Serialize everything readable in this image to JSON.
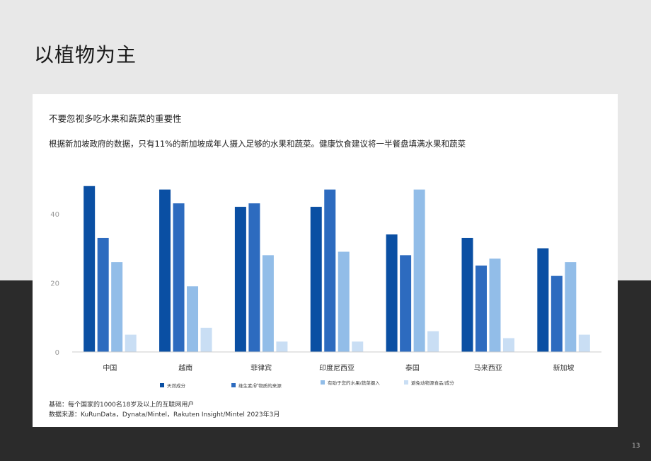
{
  "page": {
    "title": "以植物为主",
    "page_number": "13"
  },
  "card": {
    "title": "不要忽视多吃水果和蔬菜的重要性",
    "description": "根据新加坡政府的数据，只有11%的新加坡成年人摄入足够的水果和蔬菜。健康饮食建议将一半餐盘填满水果和蔬菜",
    "footnote_base": "基础：每个国家的1000名18岁及以上的互联网用户",
    "footnote_source": "数据来源：KuRunData，Dynata/Mintel，Rakuten Insight/Mintel 2023年3月"
  },
  "colors": {
    "series": [
      "#0a4fa3",
      "#2d6bbf",
      "#92bde8",
      "#c9def4"
    ],
    "top_band": "#e8e8e8",
    "bottom_band": "#2b2b2b"
  },
  "chart_data": {
    "type": "bar",
    "title": "",
    "xlabel": "",
    "ylabel": "",
    "ylim": [
      0,
      50
    ],
    "yticks": [
      0,
      20,
      40
    ],
    "grid": false,
    "legend_position": "bottom",
    "categories": [
      "中国",
      "越南",
      "菲律宾",
      "印度尼西亚",
      "泰国",
      "马来西亚",
      "新加坡"
    ],
    "series": [
      {
        "name": "天然成分",
        "values": [
          48,
          47,
          42,
          42,
          34,
          33,
          30
        ]
      },
      {
        "name": "维生素/矿物质的来源",
        "values": [
          33,
          43,
          43,
          47,
          28,
          25,
          22
        ]
      },
      {
        "name": "有助于您的水果/蔬菜摄入",
        "values": [
          26,
          19,
          28,
          29,
          47,
          27,
          26
        ]
      },
      {
        "name": "避免动物源食品/成分",
        "values": [
          5,
          7,
          3,
          3,
          6,
          4,
          5
        ]
      }
    ]
  }
}
